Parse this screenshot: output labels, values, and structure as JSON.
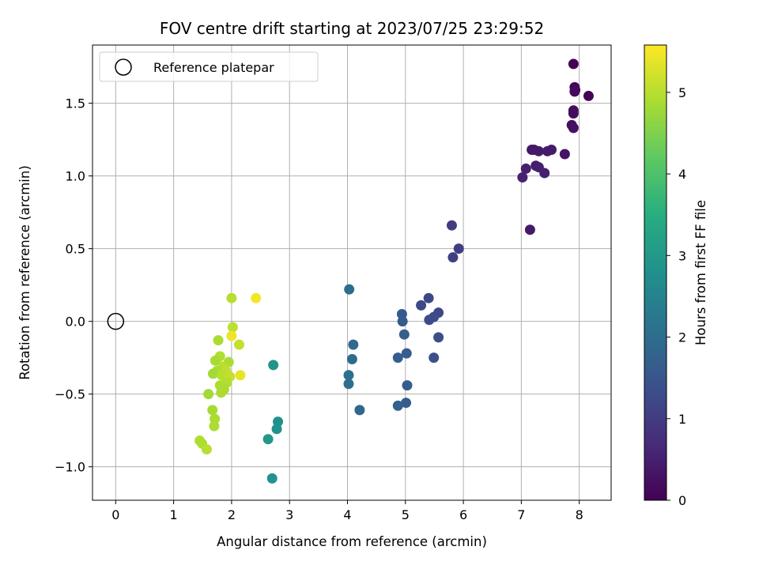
{
  "chart_data": {
    "type": "scatter",
    "title": "FOV centre drift starting at 2023/07/25 23:29:52",
    "xlabel": "Angular distance from reference (arcmin)",
    "ylabel": "Rotation from reference (arcmin)",
    "xlim": [
      -0.4,
      8.55
    ],
    "ylim": [
      -1.23,
      1.9
    ],
    "xticks": [
      0,
      1,
      2,
      3,
      4,
      5,
      6,
      7,
      8
    ],
    "xtick_labels": [
      "0",
      "1",
      "2",
      "3",
      "4",
      "5",
      "6",
      "7",
      "8"
    ],
    "yticks": [
      -1.0,
      -0.5,
      0.0,
      0.5,
      1.0,
      1.5
    ],
    "ytick_labels": [
      "−1.0",
      "−0.5",
      "0.0",
      "0.5",
      "1.0",
      "1.5"
    ],
    "grid": true,
    "legend": {
      "placement": "upper-left",
      "entries": [
        {
          "label": "Reference platepar",
          "marker": "open-circle",
          "x": 0.0,
          "y": 0.0
        }
      ]
    },
    "colorbar": {
      "label": "Hours from first FF file",
      "colormap": "viridis",
      "range": [
        0,
        5.58
      ],
      "ticks": [
        0,
        1,
        2,
        3,
        4,
        5
      ],
      "tick_labels": [
        "0",
        "1",
        "2",
        "3",
        "4",
        "5"
      ]
    },
    "points": [
      {
        "x": 7.9,
        "y": 1.77,
        "c": 0.02
      },
      {
        "x": 7.92,
        "y": 1.61,
        "c": 0.1
      },
      {
        "x": 7.93,
        "y": 1.59,
        "c": 0.12
      },
      {
        "x": 7.92,
        "y": 1.58,
        "c": 0.14
      },
      {
        "x": 8.16,
        "y": 1.55,
        "c": 0.05
      },
      {
        "x": 7.9,
        "y": 1.45,
        "c": 0.18
      },
      {
        "x": 7.9,
        "y": 1.43,
        "c": 0.2
      },
      {
        "x": 7.87,
        "y": 1.35,
        "c": 0.22
      },
      {
        "x": 7.9,
        "y": 1.33,
        "c": 0.24
      },
      {
        "x": 7.18,
        "y": 1.18,
        "c": 0.35
      },
      {
        "x": 7.22,
        "y": 1.18,
        "c": 0.37
      },
      {
        "x": 7.3,
        "y": 1.17,
        "c": 0.4
      },
      {
        "x": 7.45,
        "y": 1.17,
        "c": 0.44
      },
      {
        "x": 7.52,
        "y": 1.18,
        "c": 0.42
      },
      {
        "x": 7.75,
        "y": 1.15,
        "c": 0.3
      },
      {
        "x": 7.25,
        "y": 1.07,
        "c": 0.46
      },
      {
        "x": 7.3,
        "y": 1.06,
        "c": 0.48
      },
      {
        "x": 7.08,
        "y": 1.05,
        "c": 0.5
      },
      {
        "x": 7.02,
        "y": 0.99,
        "c": 0.54
      },
      {
        "x": 7.4,
        "y": 1.02,
        "c": 0.52
      },
      {
        "x": 7.15,
        "y": 0.63,
        "c": 0.4
      },
      {
        "x": 5.8,
        "y": 0.66,
        "c": 1.0
      },
      {
        "x": 5.92,
        "y": 0.5,
        "c": 1.05
      },
      {
        "x": 5.82,
        "y": 0.44,
        "c": 1.1
      },
      {
        "x": 5.4,
        "y": 0.16,
        "c": 1.2
      },
      {
        "x": 5.27,
        "y": 0.11,
        "c": 1.25
      },
      {
        "x": 5.57,
        "y": 0.06,
        "c": 1.22
      },
      {
        "x": 5.49,
        "y": 0.03,
        "c": 1.28
      },
      {
        "x": 5.41,
        "y": 0.01,
        "c": 1.3
      },
      {
        "x": 5.57,
        "y": -0.11,
        "c": 1.33
      },
      {
        "x": 5.49,
        "y": -0.25,
        "c": 1.38
      },
      {
        "x": 4.94,
        "y": 0.05,
        "c": 1.6
      },
      {
        "x": 4.95,
        "y": 0.0,
        "c": 1.62
      },
      {
        "x": 4.98,
        "y": -0.09,
        "c": 1.65
      },
      {
        "x": 5.02,
        "y": -0.22,
        "c": 1.68
      },
      {
        "x": 4.87,
        "y": -0.25,
        "c": 1.7
      },
      {
        "x": 5.03,
        "y": -0.44,
        "c": 1.63
      },
      {
        "x": 5.01,
        "y": -0.56,
        "c": 1.66
      },
      {
        "x": 4.87,
        "y": -0.58,
        "c": 1.72
      },
      {
        "x": 4.03,
        "y": 0.22,
        "c": 2.0
      },
      {
        "x": 4.1,
        "y": -0.16,
        "c": 1.95
      },
      {
        "x": 4.08,
        "y": -0.26,
        "c": 1.98
      },
      {
        "x": 4.02,
        "y": -0.37,
        "c": 2.02
      },
      {
        "x": 4.02,
        "y": -0.43,
        "c": 2.05
      },
      {
        "x": 4.21,
        "y": -0.61,
        "c": 1.9
      },
      {
        "x": 2.72,
        "y": -0.3,
        "c": 2.9
      },
      {
        "x": 2.8,
        "y": -0.69,
        "c": 2.8
      },
      {
        "x": 2.78,
        "y": -0.74,
        "c": 2.85
      },
      {
        "x": 2.63,
        "y": -0.81,
        "c": 2.95
      },
      {
        "x": 2.7,
        "y": -1.08,
        "c": 2.88
      },
      {
        "x": 2.0,
        "y": 0.16,
        "c": 5.0
      },
      {
        "x": 2.42,
        "y": 0.16,
        "c": 5.5
      },
      {
        "x": 2.02,
        "y": -0.04,
        "c": 5.05
      },
      {
        "x": 2.0,
        "y": -0.1,
        "c": 5.45
      },
      {
        "x": 1.77,
        "y": -0.13,
        "c": 4.9
      },
      {
        "x": 2.13,
        "y": -0.16,
        "c": 5.1
      },
      {
        "x": 1.8,
        "y": -0.24,
        "c": 4.95
      },
      {
        "x": 1.72,
        "y": -0.27,
        "c": 4.85
      },
      {
        "x": 1.95,
        "y": -0.28,
        "c": 4.88
      },
      {
        "x": 1.85,
        "y": -0.31,
        "c": 5.0
      },
      {
        "x": 1.9,
        "y": -0.34,
        "c": 5.05
      },
      {
        "x": 1.75,
        "y": -0.34,
        "c": 4.9
      },
      {
        "x": 1.68,
        "y": -0.36,
        "c": 4.82
      },
      {
        "x": 1.83,
        "y": -0.37,
        "c": 5.0
      },
      {
        "x": 1.97,
        "y": -0.38,
        "c": 5.1
      },
      {
        "x": 2.15,
        "y": -0.37,
        "c": 5.4
      },
      {
        "x": 1.92,
        "y": -0.42,
        "c": 4.95
      },
      {
        "x": 1.8,
        "y": -0.44,
        "c": 4.92
      },
      {
        "x": 1.87,
        "y": -0.47,
        "c": 4.88
      },
      {
        "x": 1.82,
        "y": -0.49,
        "c": 4.9
      },
      {
        "x": 1.6,
        "y": -0.5,
        "c": 4.8
      },
      {
        "x": 1.67,
        "y": -0.61,
        "c": 4.85
      },
      {
        "x": 1.71,
        "y": -0.67,
        "c": 4.9
      },
      {
        "x": 1.7,
        "y": -0.72,
        "c": 4.92
      },
      {
        "x": 1.45,
        "y": -0.82,
        "c": 4.95
      },
      {
        "x": 1.49,
        "y": -0.84,
        "c": 4.92
      },
      {
        "x": 1.57,
        "y": -0.88,
        "c": 5.0
      }
    ]
  }
}
